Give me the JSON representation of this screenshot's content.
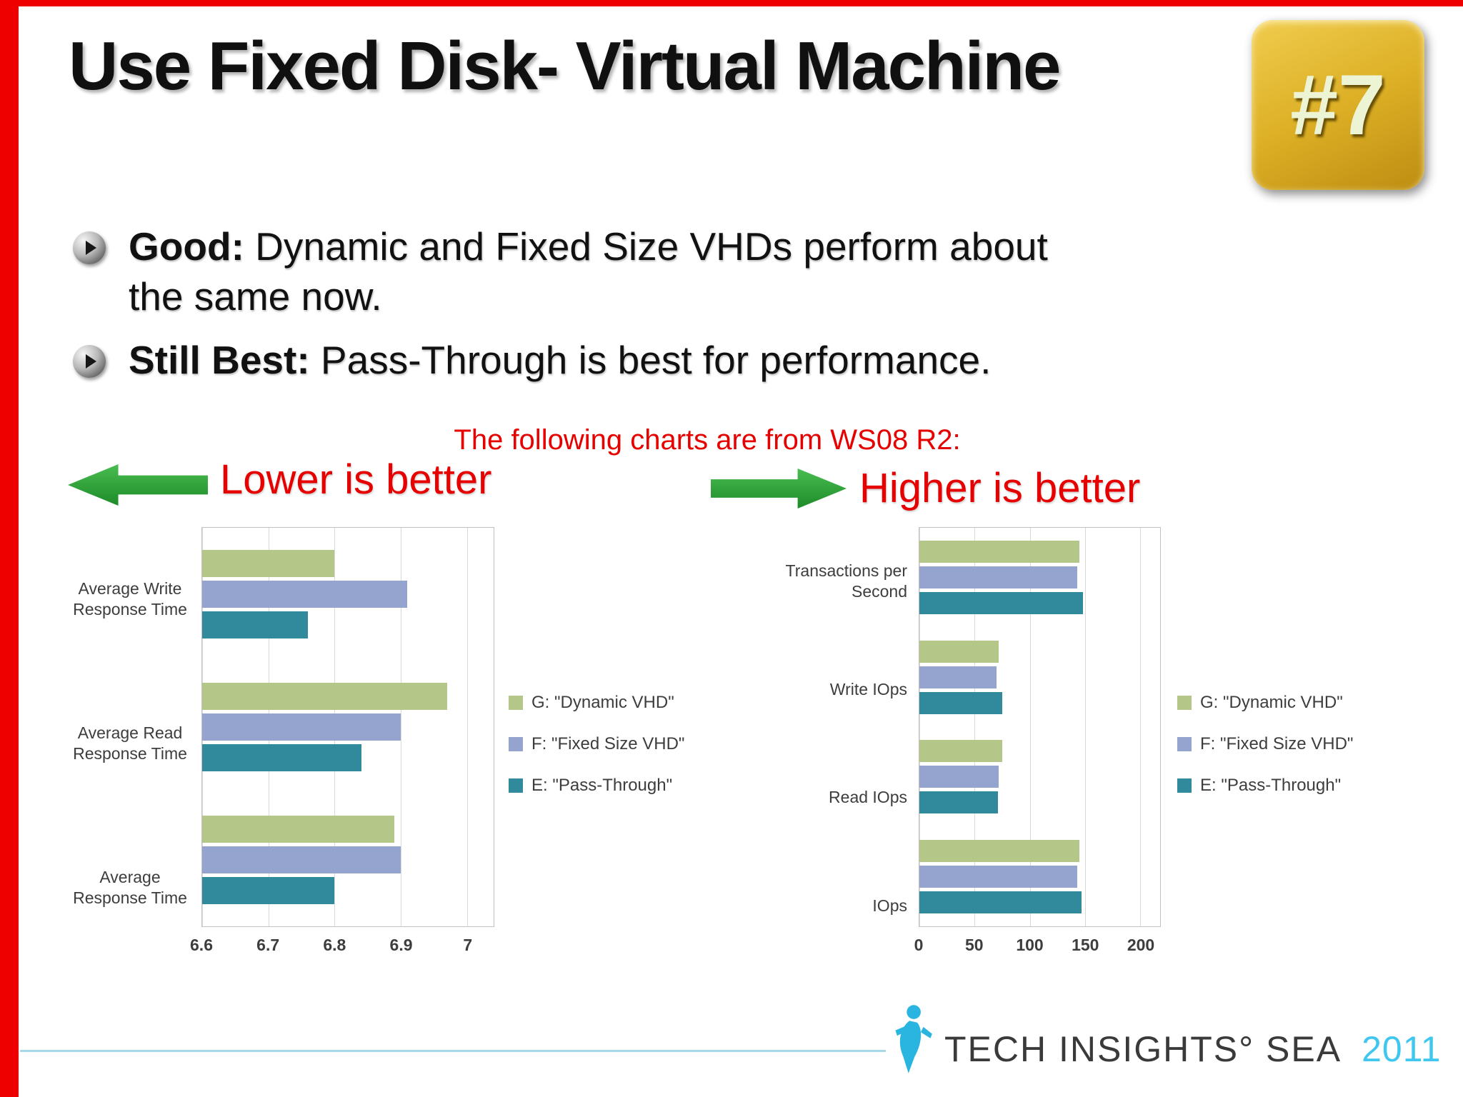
{
  "slide": {
    "title": "Use Fixed Disk- Virtual Machine",
    "badge_label": "#7",
    "bullets": [
      {
        "lead": "Good:",
        "rest": " Dynamic and Fixed Size VHDs perform about",
        "line2": "the same now."
      },
      {
        "lead": "Still Best:",
        "rest": " Pass-Through is best for performance.",
        "line2": ""
      }
    ],
    "charts_note": "The following charts are from WS08 R2:",
    "lower_label": "Lower is better",
    "higher_label": "Higher is better"
  },
  "footer": {
    "brand": "TECH INSIGHTS° SEA",
    "year": "2011"
  },
  "colors": {
    "accent_red": "#ee0000",
    "arrow_green": "#2aa136",
    "badge_gold": "#ddb026",
    "footer_cyan": "#3fc7ef",
    "series_dynamic": "#b5c689",
    "series_fixed": "#95a3cf",
    "series_passthrough": "#31899c"
  },
  "chart_data": [
    {
      "type": "bar",
      "orientation": "horizontal",
      "title": "",
      "note": "Lower is better",
      "lower_is_better": true,
      "categories": [
        "Average Write Response Time",
        "Average Read Response Time",
        "Average Response Time"
      ],
      "series": [
        {
          "name": "G: \"Dynamic VHD\"",
          "color": "#b5c689",
          "values": [
            6.8,
            6.97,
            6.89
          ]
        },
        {
          "name": "F: \"Fixed Size VHD\"",
          "color": "#95a3cf",
          "values": [
            6.91,
            6.9,
            6.9
          ]
        },
        {
          "name": "E: \"Pass-Through\"",
          "color": "#31899c",
          "values": [
            6.76,
            6.84,
            6.8
          ]
        }
      ],
      "xlim": [
        6.6,
        7.04
      ],
      "ticks": [
        6.6,
        6.7,
        6.8,
        6.9,
        7
      ],
      "tick_labels": [
        "6.6",
        "6.7",
        "6.8",
        "6.9",
        "7"
      ],
      "grid": true,
      "legend_position": "right"
    },
    {
      "type": "bar",
      "orientation": "horizontal",
      "title": "",
      "note": "Higher is better",
      "lower_is_better": false,
      "categories": [
        "Transactions per Second",
        "Write IOps",
        "Read IOps",
        "IOps"
      ],
      "series": [
        {
          "name": "G: \"Dynamic VHD\"",
          "color": "#b5c689",
          "values": [
            145,
            72,
            75,
            145
          ]
        },
        {
          "name": "F: \"Fixed Size VHD\"",
          "color": "#95a3cf",
          "values": [
            143,
            70,
            72,
            143
          ]
        },
        {
          "name": "E: \"Pass-Through\"",
          "color": "#31899c",
          "values": [
            148,
            75,
            71,
            147
          ]
        }
      ],
      "xlim": [
        0,
        218
      ],
      "ticks": [
        0,
        50,
        100,
        150,
        200
      ],
      "tick_labels": [
        "0",
        "50",
        "100",
        "150",
        "200"
      ],
      "grid": true,
      "legend_position": "right"
    }
  ]
}
